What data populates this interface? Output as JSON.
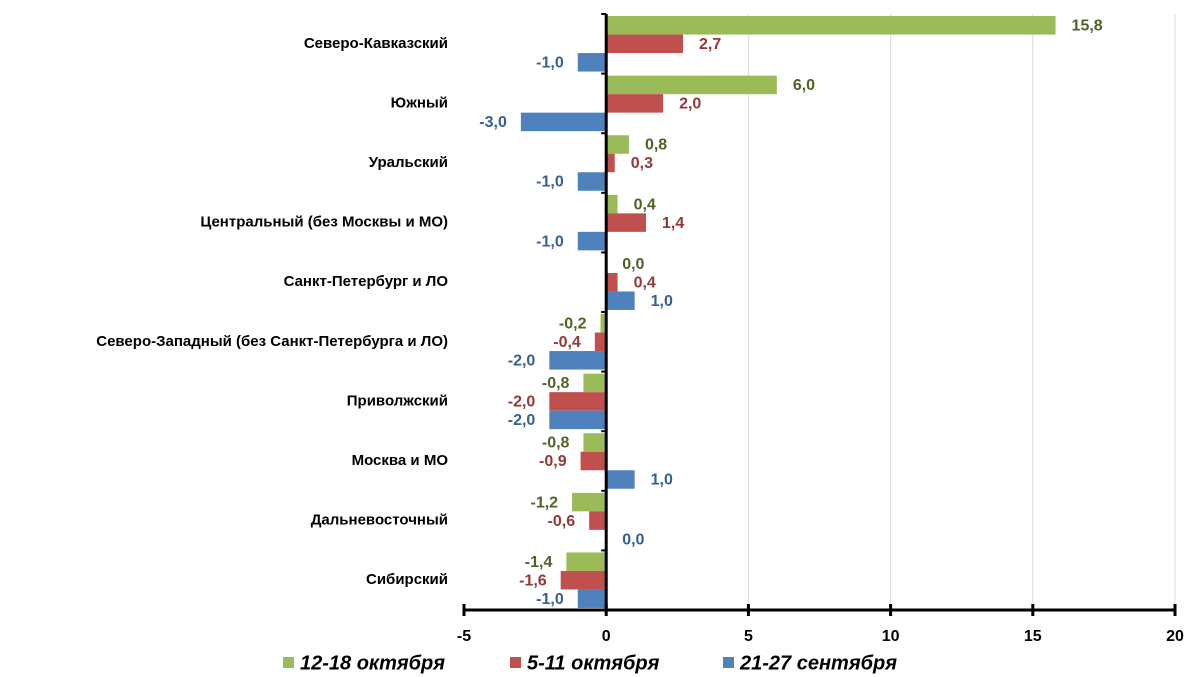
{
  "chart_data": {
    "type": "barh",
    "categories": [
      "Северо-Кавказский",
      "Южный",
      "Уральский",
      "Центральный (без Москвы и МО)",
      "Санкт-Петербург и ЛО",
      "Северо-Западный (без Санкт-Петербурга и ЛО)",
      "Приволжский ",
      "Москва и МО",
      "Дальневосточный",
      "Сибирский"
    ],
    "series": [
      {
        "name": "12-18 октября",
        "color": "#9bbb59",
        "label_color": "#4f6228",
        "values": [
          15.8,
          6.0,
          0.8,
          0.4,
          0.0,
          -0.2,
          -0.8,
          -0.8,
          -1.2,
          -1.4
        ],
        "value_labels": [
          "15,8",
          "6,0",
          "0,8",
          "0,4",
          "0,0",
          "-0,2",
          "-0,8",
          "-0,8",
          "-1,2",
          "-1,4"
        ]
      },
      {
        "name": "5-11 октября",
        "color": "#c0504d",
        "label_color": "#953735",
        "values": [
          2.7,
          2.0,
          0.3,
          1.4,
          0.4,
          -0.4,
          -2.0,
          -0.9,
          -0.6,
          -1.6
        ],
        "value_labels": [
          "2,7",
          "2,0",
          "0,3",
          "1,4",
          "0,4",
          "-0,4",
          "-2,0",
          "-0,9",
          "-0,6",
          "-1,6"
        ]
      },
      {
        "name": "21-27 сентября",
        "color": "#4f81bd",
        "label_color": "#376092",
        "values": [
          -1.0,
          -3.0,
          -1.0,
          -1.0,
          1.0,
          -2.0,
          -2.0,
          1.0,
          0.0,
          -1.0
        ],
        "value_labels": [
          "-1,0",
          "-3,0",
          "-1,0",
          "-1,0",
          "1,0",
          "-2,0",
          "-2,0",
          "1,0",
          "0,0",
          "-1,0"
        ]
      }
    ],
    "xlim": [
      -5,
      20
    ],
    "xticks": [
      -5,
      0,
      5,
      10,
      15,
      20
    ],
    "grid": true,
    "legend": "bottom"
  }
}
